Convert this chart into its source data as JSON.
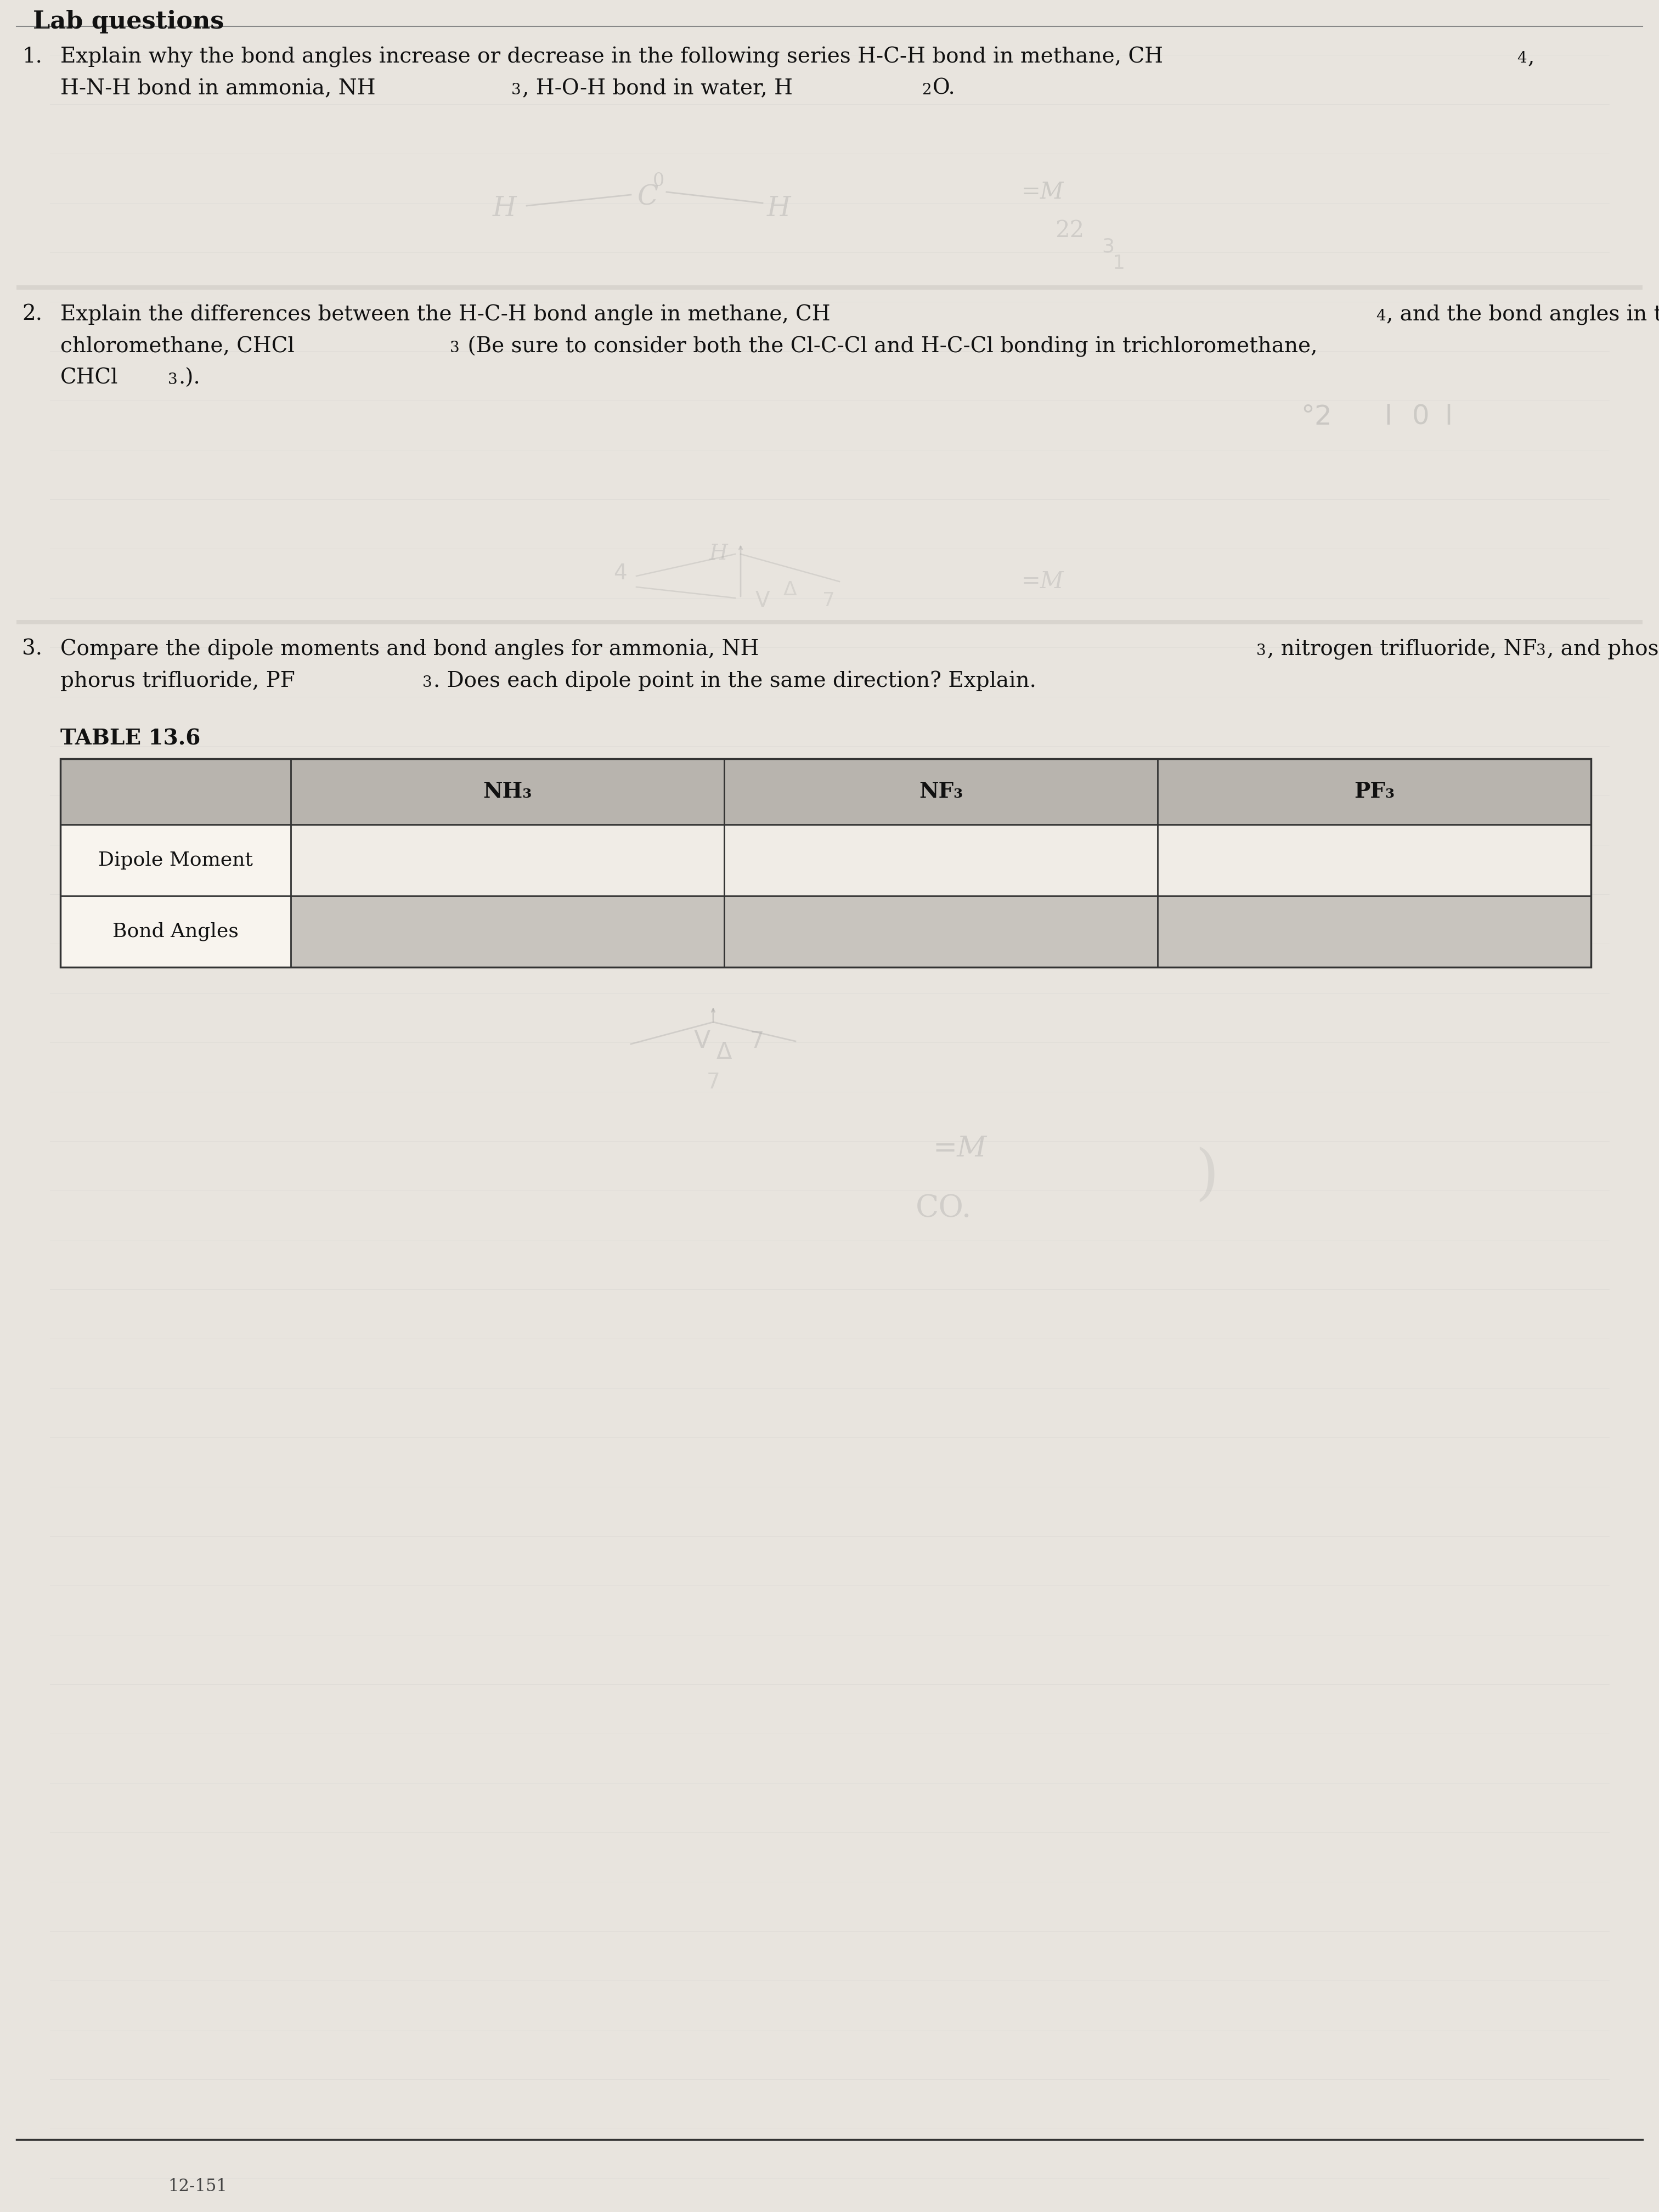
{
  "page_bg": "#e8e4de",
  "content_bg": "#ece8e2",
  "text_color": "#111111",
  "table_header_bg": "#b8b4ae",
  "table_row1_bg": "#eae6e0",
  "table_row2_bg": "#c8c4be",
  "hw_color": "#909090",
  "border_color": "#333333",
  "font_size": 28,
  "font_size_sub": 20,
  "font_size_table": 26,
  "font_size_table_header": 28,
  "font_size_small": 22,
  "q1_line1": "Explain why the bond angles increase or decrease in the following series H-C-H bond in methane, CH",
  "q1_line2_a": "H-N-H bond in ammonia, NH",
  "q1_line2_b": ", H-O-H bond in water, H",
  "q1_line2_c": "O.",
  "q2_line1_a": "Explain the differences between the H-C-H bond angle in methane, CH",
  "q2_line1_b": ", and the bond angles in tri-",
  "q2_line2_a": "chloromethane, CHCl",
  "q2_line2_b": " (Be sure to consider both the Cl-C-Cl and H-C-Cl bonding in trichloromethane,",
  "q2_line3_a": "CHCl",
  "q2_line3_b": ".).",
  "q3_line1_a": "Compare the dipole moments and bond angles for ammonia, NH",
  "q3_line1_b": ", nitrogen trifluoride, NF",
  "q3_line1_c": ", and phos-",
  "q3_line2_a": "phorus trifluoride, PF",
  "q3_line2_b": ". Does each dipole point in the same direction? Explain.",
  "table_title": "TABLE 13.6",
  "col_headers": [
    "NH₃",
    "NF₃",
    "PF₃"
  ],
  "row_labels": [
    "Dipole Moment",
    "Bond Angles"
  ]
}
